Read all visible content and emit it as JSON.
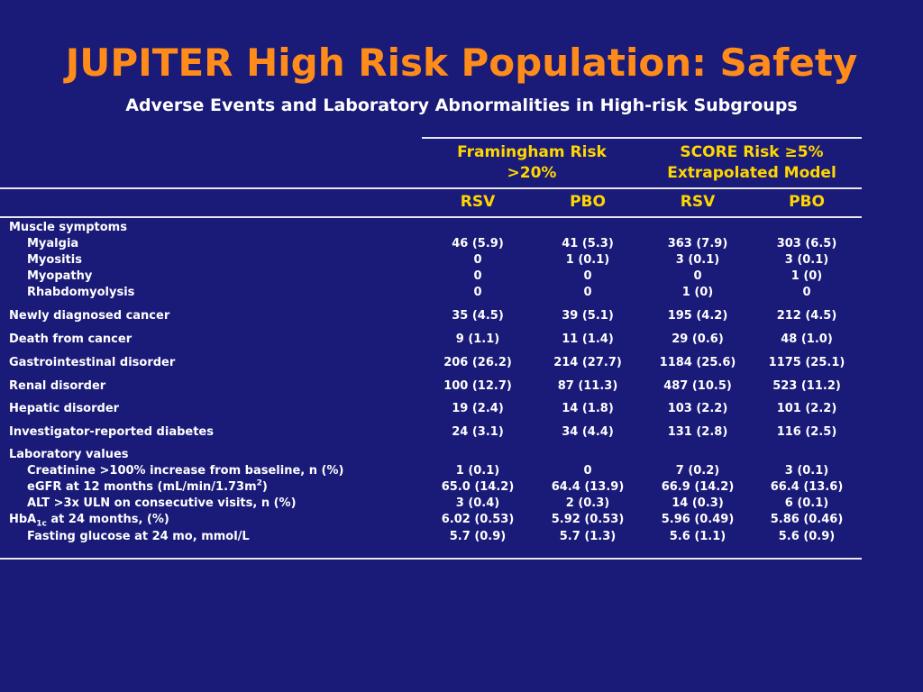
{
  "slide": {
    "title": "JUPITER High Risk Population: Safety",
    "subtitle": "Adverse Events and Laboratory Abnormalities in High-risk Subgroups"
  },
  "table": {
    "groups": [
      {
        "line1": "Framingham Risk",
        "line2": ">20%"
      },
      {
        "line1": "SCORE Risk ≥5%",
        "line2": "Extrapolated Model"
      }
    ],
    "columns": [
      "RSV",
      "PBO",
      "RSV",
      "PBO"
    ],
    "rows": [
      {
        "label": "Muscle symptoms",
        "indent": false,
        "values": [
          "",
          "",
          "",
          ""
        ]
      },
      {
        "label": "Myalgia",
        "indent": true,
        "values": [
          "46 (5.9)",
          "41 (5.3)",
          "363 (7.9)",
          "303 (6.5)"
        ]
      },
      {
        "label": "Myositis",
        "indent": true,
        "values": [
          "0",
          "1 (0.1)",
          "3 (0.1)",
          "3 (0.1)"
        ]
      },
      {
        "label": "Myopathy",
        "indent": true,
        "values": [
          "0",
          "0",
          "0",
          "1 (0)"
        ]
      },
      {
        "label": "Rhabdomyolysis",
        "indent": true,
        "values": [
          "0",
          "0",
          "1 (0)",
          "0"
        ]
      },
      {
        "label": "Newly diagnosed cancer",
        "indent": false,
        "values": [
          "35 (4.5)",
          "39 (5.1)",
          "195 (4.2)",
          "212 (4.5)"
        ]
      },
      {
        "label": "Death from cancer",
        "indent": false,
        "values": [
          "9 (1.1)",
          "11 (1.4)",
          "29 (0.6)",
          "48 (1.0)"
        ]
      },
      {
        "label": "Gastrointestinal disorder",
        "indent": false,
        "values": [
          "206 (26.2)",
          "214 (27.7)",
          "1184 (25.6)",
          "1175 (25.1)"
        ]
      },
      {
        "label": "Renal disorder",
        "indent": false,
        "values": [
          "100 (12.7)",
          "87 (11.3)",
          "487 (10.5)",
          "523 (11.2)"
        ]
      },
      {
        "label": "Hepatic disorder",
        "indent": false,
        "values": [
          "19 (2.4)",
          "14 (1.8)",
          "103 (2.2)",
          "101 (2.2)"
        ]
      },
      {
        "label": "Investigator-reported diabetes",
        "indent": false,
        "values": [
          "24 (3.1)",
          "34 (4.4)",
          "131 (2.8)",
          "116 (2.5)"
        ]
      },
      {
        "label": "Laboratory values",
        "indent": false,
        "values": [
          "",
          "",
          "",
          ""
        ]
      },
      {
        "label": "Creatinine >100% increase from baseline, n (%)",
        "indent": true,
        "values": [
          "1 (0.1)",
          "0",
          "7 (0.2)",
          "3 (0.1)"
        ]
      },
      {
        "label_pre": "eGFR at 12 months (mL/min/1.73m",
        "label_sup": "2",
        "label_post": ")",
        "indent": true,
        "values": [
          "65.0 (14.2)",
          "64.4 (13.9)",
          "66.9 (14.2)",
          "66.4 (13.6)"
        ]
      },
      {
        "label": "ALT >3x ULN on consecutive visits, n (%)",
        "indent": true,
        "values": [
          "3 (0.4)",
          "2 (0.3)",
          "14 (0.3)",
          "6 (0.1)"
        ]
      },
      {
        "label_pre": "HbA",
        "label_sub": "1c",
        "label_post": " at 24 months, (%)",
        "indent": false,
        "values": [
          "6.02 (0.53)",
          "5.92 (0.53)",
          "5.96 (0.49)",
          "5.86 (0.46)"
        ]
      },
      {
        "label": "Fasting glucose at 24 mo, mmol/L",
        "indent": true,
        "values": [
          "5.7 (0.9)",
          "5.7 (1.3)",
          "5.6 (1.1)",
          "5.6 (0.9)"
        ]
      }
    ]
  }
}
